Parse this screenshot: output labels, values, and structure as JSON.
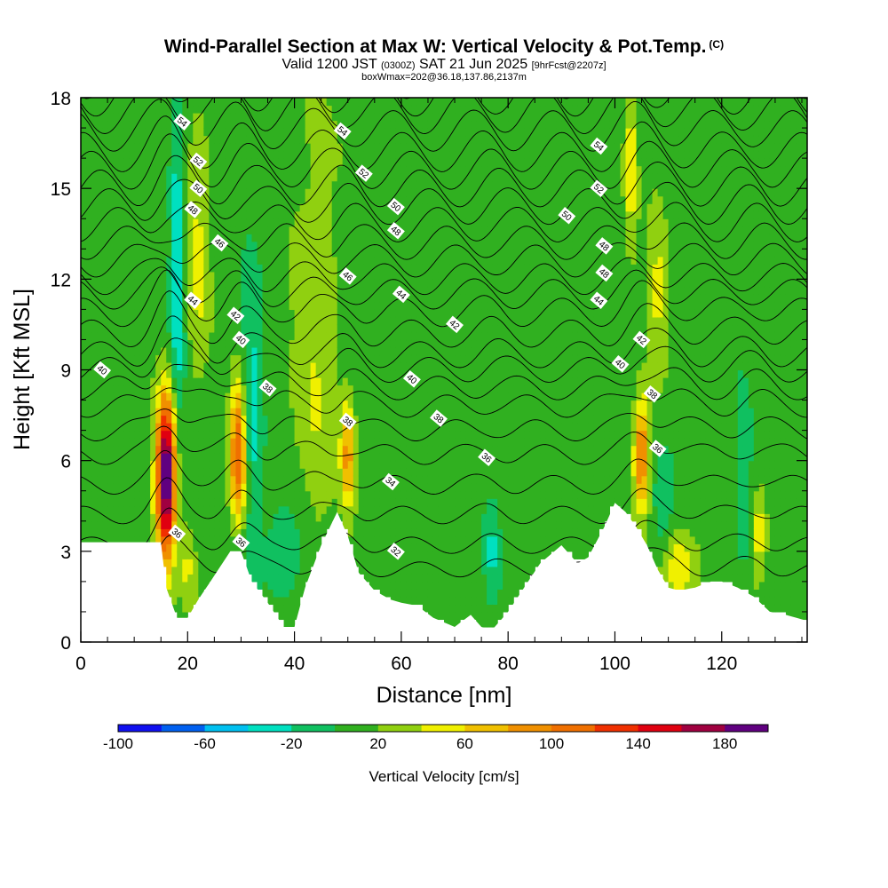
{
  "title": {
    "main": "Wind-Parallel Section at Max W: Vertical Velocity & Pot.Temp.",
    "copyright": "(C)",
    "valid_prefix": "Valid 1200 JST",
    "valid_utc": "(0300Z)",
    "valid_date": "SAT 21 Jun 2025",
    "forecast": "[9hrFcst@2207z]",
    "box_info": "boxWmax=202@36.18,137.86,2137m"
  },
  "chart_data": {
    "type": "heatmap",
    "xlabel": "Distance [nm]",
    "ylabel": "Height [Kft MSL]",
    "xlim": [
      0,
      136
    ],
    "ylim": [
      0,
      18
    ],
    "x_ticks": [
      "0",
      "20",
      "40",
      "60",
      "80",
      "100",
      "120"
    ],
    "y_ticks": [
      "0",
      "3",
      "6",
      "9",
      "12",
      "15",
      "18"
    ],
    "colorbar": {
      "title": "Vertical Velocity [cm/s]",
      "min": -100,
      "max": 200,
      "step": 20,
      "tick_labels": [
        "-100",
        "-60",
        "-20",
        "20",
        "60",
        "100",
        "140",
        "180"
      ],
      "colors": [
        "#1010f0",
        "#0060f0",
        "#00c0f0",
        "#00e0c0",
        "#10c060",
        "#30b020",
        "#90d010",
        "#f0f000",
        "#f0c000",
        "#f09000",
        "#f07000",
        "#f03000",
        "#e00010",
        "#a00040",
        "#600080"
      ]
    },
    "terrain_profile": {
      "x": [
        0,
        10,
        15,
        16,
        18,
        20,
        22,
        25,
        28,
        30,
        32,
        35,
        38,
        40,
        42,
        45,
        48,
        50,
        52,
        55,
        58,
        60,
        63,
        66,
        70,
        73,
        75,
        77,
        80,
        83,
        86,
        90,
        93,
        95,
        98,
        100,
        102,
        104,
        106,
        108,
        110,
        112,
        115,
        118,
        120,
        123,
        126,
        129,
        132,
        136
      ],
      "y": [
        3.3,
        3.3,
        3.3,
        1.8,
        0.8,
        0.8,
        1.4,
        2.2,
        3.0,
        3.0,
        2.0,
        1.3,
        0.5,
        0.5,
        1.8,
        3.2,
        4.3,
        3.5,
        2.3,
        1.7,
        1.4,
        1.3,
        1.2,
        0.8,
        0.5,
        0.9,
        0.5,
        0.4,
        1.0,
        1.8,
        2.6,
        3.2,
        2.6,
        2.8,
        3.8,
        4.6,
        4.3,
        3.8,
        3.2,
        2.4,
        1.8,
        1.7,
        1.8,
        2.0,
        2.0,
        1.8,
        1.5,
        1.0,
        0.9,
        0.7
      ]
    },
    "theta_contours": {
      "levels": [
        32,
        33,
        34,
        35,
        36,
        37,
        38,
        39,
        40,
        41,
        42,
        43,
        44,
        45,
        46,
        47,
        48,
        49,
        50,
        51,
        52,
        53,
        54,
        55,
        56
      ],
      "level_heights": [
        2.4,
        3.2,
        4.2,
        5.2,
        6.2,
        7.0,
        7.8,
        8.4,
        9.0,
        9.5,
        10.2,
        10.9,
        11.5,
        12.0,
        12.6,
        13.2,
        13.8,
        14.4,
        15.0,
        15.6,
        16.2,
        16.9,
        17.5,
        18.1,
        18.7
      ],
      "labels": [
        {
          "text": "54",
          "x": 19,
          "y": 17.2
        },
        {
          "text": "52",
          "x": 22,
          "y": 15.9
        },
        {
          "text": "50",
          "x": 22,
          "y": 15.0
        },
        {
          "text": "48",
          "x": 21,
          "y": 14.3
        },
        {
          "text": "46",
          "x": 26,
          "y": 13.2
        },
        {
          "text": "44",
          "x": 21,
          "y": 11.3
        },
        {
          "text": "42",
          "x": 29,
          "y": 10.8
        },
        {
          "text": "40",
          "x": 30,
          "y": 10.0
        },
        {
          "text": "38",
          "x": 35,
          "y": 8.4
        },
        {
          "text": "36",
          "x": 18,
          "y": 3.6
        },
        {
          "text": "36",
          "x": 30,
          "y": 3.3
        },
        {
          "text": "40",
          "x": 4,
          "y": 9.0
        },
        {
          "text": "54",
          "x": 49,
          "y": 16.9
        },
        {
          "text": "52",
          "x": 53,
          "y": 15.5
        },
        {
          "text": "50",
          "x": 59,
          "y": 14.4
        },
        {
          "text": "48",
          "x": 59,
          "y": 13.6
        },
        {
          "text": "46",
          "x": 50,
          "y": 12.1
        },
        {
          "text": "44",
          "x": 60,
          "y": 11.5
        },
        {
          "text": "42",
          "x": 70,
          "y": 10.5
        },
        {
          "text": "40",
          "x": 62,
          "y": 8.7
        },
        {
          "text": "38",
          "x": 50,
          "y": 7.3
        },
        {
          "text": "38",
          "x": 67,
          "y": 7.4
        },
        {
          "text": "36",
          "x": 76,
          "y": 6.1
        },
        {
          "text": "34",
          "x": 58,
          "y": 5.3
        },
        {
          "text": "32",
          "x": 59,
          "y": 3.0
        },
        {
          "text": "54",
          "x": 97,
          "y": 16.4
        },
        {
          "text": "52",
          "x": 97,
          "y": 15.0
        },
        {
          "text": "50",
          "x": 91,
          "y": 14.1
        },
        {
          "text": "48",
          "x": 98,
          "y": 13.1
        },
        {
          "text": "48",
          "x": 98,
          "y": 12.2
        },
        {
          "text": "44",
          "x": 97,
          "y": 11.3
        },
        {
          "text": "42",
          "x": 105,
          "y": 10.0
        },
        {
          "text": "40",
          "x": 101,
          "y": 9.2
        },
        {
          "text": "38",
          "x": 107,
          "y": 8.2
        },
        {
          "text": "36",
          "x": 108,
          "y": 6.4
        }
      ]
    },
    "vertical_velocity_features": [
      {
        "x": 16.0,
        "y": 5.5,
        "w_max": 202,
        "sx": 1.3,
        "sy": 1.9
      },
      {
        "x": 29.5,
        "y": 6.3,
        "w_max": 110,
        "sx": 1.1,
        "sy": 1.6
      },
      {
        "x": 50.0,
        "y": 6.2,
        "w_max": 75,
        "sx": 0.9,
        "sy": 1.3
      },
      {
        "x": 105.0,
        "y": 6.3,
        "w_max": 100,
        "sx": 1.0,
        "sy": 1.3
      },
      {
        "x": 112.0,
        "y": 2.5,
        "w_max": 45,
        "sx": 2.5,
        "sy": 0.8
      },
      {
        "x": 127.0,
        "y": 3.5,
        "w_max": 45,
        "sx": 1.0,
        "sy": 1.0
      },
      {
        "x": 20.0,
        "y": 2.5,
        "w_max": 30,
        "sx": 1.0,
        "sy": 1.0
      },
      {
        "x": 18.0,
        "y": 12.0,
        "w_max": -45,
        "sx": 1.0,
        "sy": 4.5
      },
      {
        "x": 32.0,
        "y": 7.5,
        "w_max": -40,
        "sx": 1.3,
        "sy": 3.5
      },
      {
        "x": 38.0,
        "y": 3.0,
        "w_max": -35,
        "sx": 2.5,
        "sy": 1.0
      },
      {
        "x": 77.0,
        "y": 3.0,
        "w_max": -30,
        "sx": 1.0,
        "sy": 1.3
      },
      {
        "x": 109.0,
        "y": 4.5,
        "w_max": -30,
        "sx": 1.2,
        "sy": 1.2
      },
      {
        "x": 124.0,
        "y": 5.5,
        "w_max": -30,
        "sx": 1.0,
        "sy": 2.0
      },
      {
        "x": 22.0,
        "y": 13.0,
        "w_max": 35,
        "sx": 1.5,
        "sy": 3.0
      },
      {
        "x": 44.0,
        "y": 10.0,
        "w_max": 30,
        "sx": 3.0,
        "sy": 5.0
      },
      {
        "x": 103.0,
        "y": 16.0,
        "w_max": 40,
        "sx": 0.8,
        "sy": 2.5
      },
      {
        "x": 108.0,
        "y": 11.5,
        "w_max": 35,
        "sx": 1.2,
        "sy": 2.0
      }
    ]
  }
}
